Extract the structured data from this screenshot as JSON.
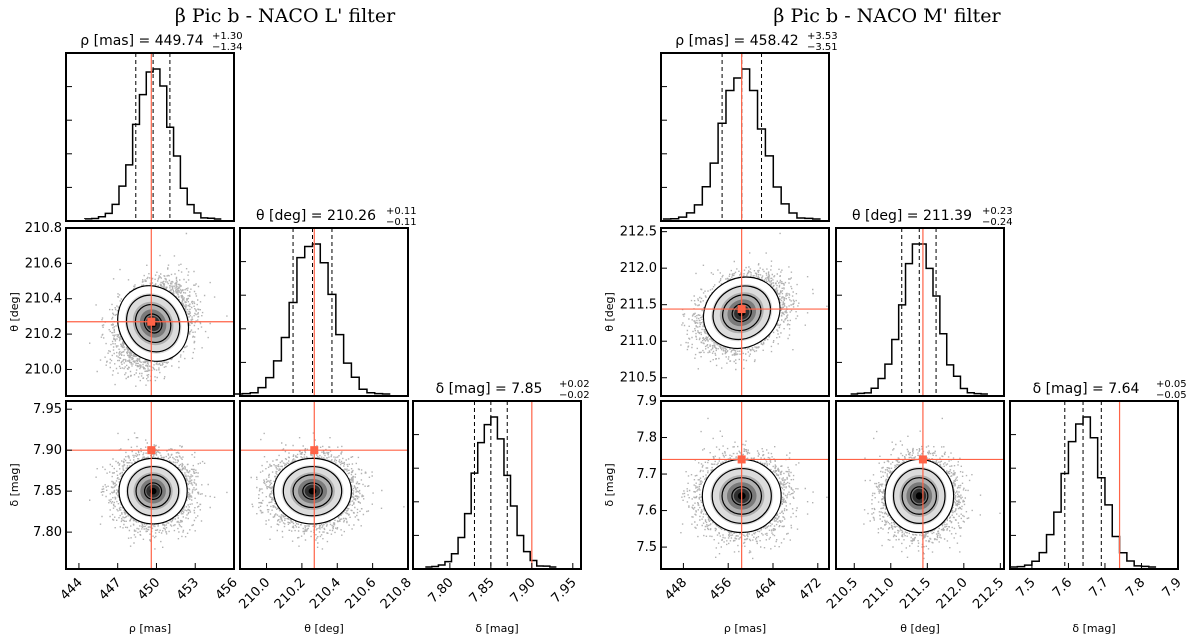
{
  "chart_data": [
    {
      "type": "corner",
      "title": "β Pic b - NACO L' filter",
      "truth_color": "#ff6347",
      "params": [
        {
          "symbol": "ρ",
          "unit": "[mas]",
          "label": "ρ [mas]",
          "median": 449.74,
          "plus": 1.3,
          "minus": 1.34,
          "median_text": "449.74",
          "plus_text": "+1.30",
          "minus_text": "−1.34",
          "range": [
            443.0,
            456.0
          ],
          "ticks": [
            444,
            447,
            450,
            453,
            456
          ],
          "truth": 449.6
        },
        {
          "symbol": "θ",
          "unit": "[deg]",
          "label": "θ [deg]",
          "median": 210.26,
          "plus": 0.11,
          "minus": 0.11,
          "median_text": "210.26",
          "plus_text": "+0.11",
          "minus_text": "−0.11",
          "range": [
            209.85,
            210.8
          ],
          "ticks": [
            210.0,
            210.2,
            210.4,
            210.6,
            210.8
          ],
          "truth": 210.27
        },
        {
          "symbol": "δ",
          "unit": "[mag]",
          "label": "δ [mag]",
          "median": 7.85,
          "plus": 0.02,
          "minus": 0.02,
          "median_text": "7.85",
          "plus_text": "+0.02",
          "minus_text": "−0.02",
          "range": [
            7.755,
            7.96
          ],
          "ticks": [
            7.8,
            7.85,
            7.9,
            7.95
          ],
          "truth": 7.9
        }
      ],
      "tick_labels": [
        [
          "444",
          "447",
          "450",
          "453",
          "456"
        ],
        [
          "210.0",
          "210.2",
          "210.4",
          "210.6",
          "210.8"
        ],
        [
          "7.80",
          "7.85",
          "7.90",
          "7.95"
        ]
      ],
      "hist_peak_bin_fraction": [
        0.3,
        0.2,
        0.18
      ]
    },
    {
      "type": "corner",
      "title": "β Pic b - NACO M' filter",
      "truth_color": "#ff6347",
      "params": [
        {
          "symbol": "ρ",
          "unit": "[mas]",
          "label": "ρ [mas]",
          "median": 458.42,
          "plus": 3.53,
          "minus": 3.51,
          "median_text": "458.42",
          "plus_text": "+3.53",
          "minus_text": "−3.51",
          "range": [
            444.0,
            474.0
          ],
          "ticks": [
            448,
            456,
            464,
            472
          ],
          "truth": 458.4
        },
        {
          "symbol": "θ",
          "unit": "[deg]",
          "label": "θ [deg]",
          "median": 211.39,
          "plus": 0.23,
          "minus": 0.24,
          "median_text": "211.39",
          "plus_text": "+0.23",
          "minus_text": "−0.24",
          "range": [
            210.25,
            212.55
          ],
          "ticks": [
            210.5,
            211.0,
            211.5,
            212.0,
            212.5
          ],
          "truth": 211.44
        },
        {
          "symbol": "δ",
          "unit": "[mag]",
          "label": "δ [mag]",
          "median": 7.64,
          "plus": 0.05,
          "minus": 0.05,
          "median_text": "7.64",
          "plus_text": "+0.05",
          "minus_text": "−0.05",
          "range": [
            7.44,
            7.9
          ],
          "ticks": [
            7.5,
            7.6,
            7.7,
            7.8,
            7.9
          ],
          "truth": 7.74
        }
      ],
      "tick_labels": [
        [
          "448",
          "456",
          "464",
          "472"
        ],
        [
          "210.5",
          "211.0",
          "211.5",
          "212.0",
          "212.5"
        ],
        [
          "7.5",
          "7.6",
          "7.7",
          "7.8",
          "7.9"
        ]
      ],
      "hist_peak_bin_fraction": [
        0.11,
        0.15,
        0.19
      ]
    }
  ]
}
